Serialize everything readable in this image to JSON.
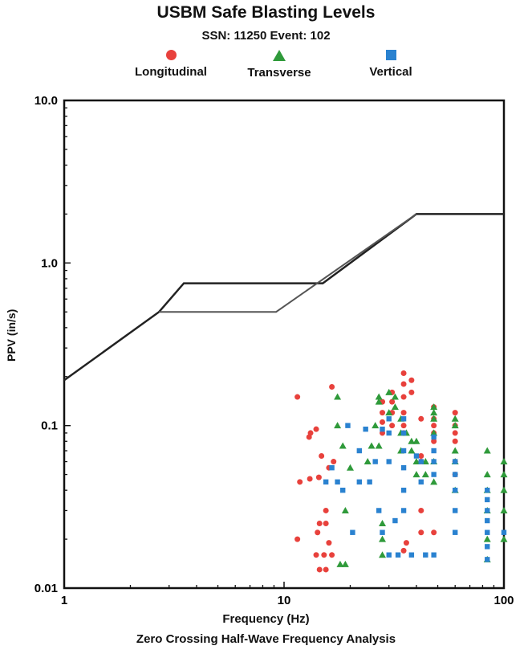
{
  "chart_data": {
    "type": "scatter",
    "title": "USBM Safe Blasting Levels",
    "subtitle": "SSN: 11250 Event: 102",
    "xlabel": "Frequency (Hz)",
    "ylabel": "PPV (in/s)",
    "caption": "Zero Crossing Half-Wave Frequency Analysis",
    "xscale": "log",
    "yscale": "log",
    "xlim": [
      1,
      100
    ],
    "ylim": [
      0.01,
      10
    ],
    "x_ticks": [
      "1",
      "10",
      "100"
    ],
    "y_ticks": [
      "0.01",
      "0.1",
      "1.0",
      "10.0"
    ],
    "grid": false,
    "legend_position": "top",
    "colors": {
      "Longitudinal": "#e8413c",
      "Transverse": "#2f9a3a",
      "Vertical": "#2a82d0",
      "limit": "#222222"
    },
    "limit_lines": [
      {
        "name": "upper",
        "x": [
          1,
          2.7,
          3.5,
          15,
          40,
          100
        ],
        "y": [
          0.19,
          0.5,
          0.75,
          0.75,
          2.0,
          2.0
        ]
      },
      {
        "name": "lower",
        "x": [
          2.7,
          9.2,
          40
        ],
        "y": [
          0.5,
          0.5,
          2.0
        ]
      }
    ],
    "series": [
      {
        "name": "Longitudinal",
        "marker": "circle",
        "points": [
          [
            11.5,
            0.15
          ],
          [
            11.8,
            0.045
          ],
          [
            11.5,
            0.02
          ],
          [
            13,
            0.085
          ],
          [
            13.2,
            0.09
          ],
          [
            14,
            0.095
          ],
          [
            14.8,
            0.065
          ],
          [
            15.5,
            0.03
          ],
          [
            16.5,
            0.173
          ],
          [
            16,
            0.055
          ],
          [
            16.8,
            0.06
          ],
          [
            14.5,
            0.025
          ],
          [
            14.2,
            0.022
          ],
          [
            14,
            0.016
          ],
          [
            15.2,
            0.016
          ],
          [
            14.5,
            0.013
          ],
          [
            15.5,
            0.013
          ],
          [
            16,
            0.019
          ],
          [
            16.5,
            0.016
          ],
          [
            15.5,
            0.025
          ],
          [
            14.4,
            0.048
          ],
          [
            13.1,
            0.047
          ],
          [
            28,
            0.14
          ],
          [
            28,
            0.12
          ],
          [
            28,
            0.105
          ],
          [
            28,
            0.09
          ],
          [
            31,
            0.16
          ],
          [
            31,
            0.14
          ],
          [
            31,
            0.12
          ],
          [
            31,
            0.1
          ],
          [
            35,
            0.21
          ],
          [
            35,
            0.18
          ],
          [
            35,
            0.15
          ],
          [
            35,
            0.12
          ],
          [
            35,
            0.1
          ],
          [
            35,
            0.09
          ],
          [
            38,
            0.19
          ],
          [
            38,
            0.16
          ],
          [
            35,
            0.017
          ],
          [
            36,
            0.019
          ],
          [
            42,
            0.11
          ],
          [
            42,
            0.06
          ],
          [
            42,
            0.065
          ],
          [
            42,
            0.03
          ],
          [
            42,
            0.022
          ],
          [
            48,
            0.13
          ],
          [
            48,
            0.11
          ],
          [
            48,
            0.1
          ],
          [
            48,
            0.09
          ],
          [
            48,
            0.08
          ],
          [
            48,
            0.022
          ],
          [
            60,
            0.12
          ],
          [
            60,
            0.1
          ],
          [
            60,
            0.09
          ],
          [
            60,
            0.08
          ],
          [
            60,
            0.06
          ],
          [
            60,
            0.05
          ]
        ]
      },
      {
        "name": "Transverse",
        "marker": "triangle",
        "points": [
          [
            17.5,
            0.15
          ],
          [
            17.5,
            0.1
          ],
          [
            18,
            0.014
          ],
          [
            19,
            0.014
          ],
          [
            19,
            0.03
          ],
          [
            18.5,
            0.075
          ],
          [
            20,
            0.055
          ],
          [
            24,
            0.06
          ],
          [
            25,
            0.075
          ],
          [
            26,
            0.1
          ],
          [
            27,
            0.15
          ],
          [
            27,
            0.14
          ],
          [
            27,
            0.075
          ],
          [
            28,
            0.02
          ],
          [
            28,
            0.016
          ],
          [
            28,
            0.025
          ],
          [
            30,
            0.16
          ],
          [
            30,
            0.12
          ],
          [
            32,
            0.15
          ],
          [
            32,
            0.13
          ],
          [
            34,
            0.11
          ],
          [
            34,
            0.09
          ],
          [
            34,
            0.07
          ],
          [
            36,
            0.09
          ],
          [
            38,
            0.08
          ],
          [
            38,
            0.07
          ],
          [
            40,
            0.08
          ],
          [
            40,
            0.06
          ],
          [
            40,
            0.05
          ],
          [
            44,
            0.06
          ],
          [
            44,
            0.05
          ],
          [
            48,
            0.13
          ],
          [
            48,
            0.12
          ],
          [
            48,
            0.11
          ],
          [
            48,
            0.09
          ],
          [
            48,
            0.06
          ],
          [
            48,
            0.045
          ],
          [
            60,
            0.11
          ],
          [
            60,
            0.1
          ],
          [
            60,
            0.07
          ],
          [
            60,
            0.06
          ],
          [
            60,
            0.04
          ],
          [
            84,
            0.07
          ],
          [
            84,
            0.05
          ],
          [
            84,
            0.04
          ],
          [
            84,
            0.03
          ],
          [
            84,
            0.02
          ],
          [
            84,
            0.015
          ],
          [
            100,
            0.06
          ],
          [
            100,
            0.05
          ],
          [
            100,
            0.04
          ],
          [
            100,
            0.03
          ],
          [
            100,
            0.02
          ]
        ]
      },
      {
        "name": "Vertical",
        "marker": "square",
        "points": [
          [
            15.5,
            0.045
          ],
          [
            16.5,
            0.055
          ],
          [
            17.5,
            0.045
          ],
          [
            18.5,
            0.04
          ],
          [
            19.5,
            0.1
          ],
          [
            20.5,
            0.022
          ],
          [
            22,
            0.07
          ],
          [
            22,
            0.045
          ],
          [
            23.5,
            0.095
          ],
          [
            24.5,
            0.045
          ],
          [
            26,
            0.06
          ],
          [
            27,
            0.03
          ],
          [
            28,
            0.095
          ],
          [
            28,
            0.022
          ],
          [
            30,
            0.11
          ],
          [
            30,
            0.09
          ],
          [
            30,
            0.06
          ],
          [
            30,
            0.016
          ],
          [
            32,
            0.026
          ],
          [
            33,
            0.016
          ],
          [
            35,
            0.11
          ],
          [
            35,
            0.09
          ],
          [
            35,
            0.07
          ],
          [
            35,
            0.055
          ],
          [
            35,
            0.04
          ],
          [
            35,
            0.03
          ],
          [
            38,
            0.016
          ],
          [
            40,
            0.065
          ],
          [
            42,
            0.06
          ],
          [
            42,
            0.045
          ],
          [
            44,
            0.016
          ],
          [
            48,
            0.085
          ],
          [
            48,
            0.07
          ],
          [
            48,
            0.06
          ],
          [
            48,
            0.05
          ],
          [
            48,
            0.016
          ],
          [
            60,
            0.06
          ],
          [
            60,
            0.05
          ],
          [
            60,
            0.04
          ],
          [
            60,
            0.022
          ],
          [
            60,
            0.03
          ],
          [
            84,
            0.04
          ],
          [
            84,
            0.035
          ],
          [
            84,
            0.03
          ],
          [
            84,
            0.026
          ],
          [
            84,
            0.022
          ],
          [
            84,
            0.018
          ],
          [
            84,
            0.015
          ],
          [
            100,
            0.022
          ]
        ]
      }
    ]
  }
}
